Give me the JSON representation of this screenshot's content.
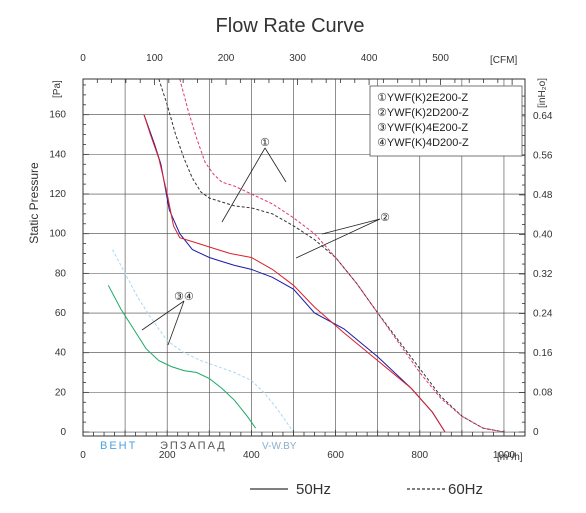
{
  "chart_data": {
    "type": "line",
    "title": "Flow Rate Curve",
    "ylabel": "Static Pressure",
    "x_bottom": {
      "unit": "[m³/h]",
      "ticks": [
        "0",
        "200",
        "400",
        "600",
        "800",
        "1000"
      ],
      "range": [
        0,
        1050
      ]
    },
    "x_top": {
      "unit": "[CFM]",
      "ticks": [
        "0",
        "100",
        "200",
        "300",
        "400",
        "500"
      ]
    },
    "y_left": {
      "unit": "[Pa]",
      "ticks": [
        "0",
        "20",
        "40",
        "60",
        "80",
        "100",
        "120",
        "140",
        "160"
      ],
      "range": [
        -2,
        178
      ]
    },
    "y_right": {
      "unit": "[inH₂o]",
      "ticks": [
        "0",
        "0.08",
        "0.16",
        "0.24",
        "0.32",
        "0.40",
        "0.48",
        "0.56",
        "0.64"
      ]
    },
    "grid": true,
    "legend_position": "top-right",
    "legend": [
      "①YWF(K)2E200-Z",
      "②YWF(K)2D200-Z",
      "③YWF(K)4E200-Z",
      "④YWF(K)4D200-Z"
    ],
    "callouts": [
      {
        "label": "①"
      },
      {
        "label": "②"
      },
      {
        "label": "③④"
      }
    ],
    "line_styles": [
      {
        "label": "50Hz",
        "dash": "solid"
      },
      {
        "label": "60Hz",
        "dash": "dashed"
      }
    ],
    "watermark": {
      "part1": "ВЕНТ",
      "part2": "ЭПЗАПАД",
      "part3": "V-W.BY"
    },
    "series": [
      {
        "color": "#1a1aa8",
        "style": "solid",
        "x": [
          145,
          170,
          185,
          205,
          230,
          260,
          300,
          330,
          360,
          400,
          450,
          500,
          550,
          620,
          700,
          780,
          830,
          860
        ],
        "y": [
          160,
          145,
          135,
          112,
          100,
          92,
          88,
          86,
          84,
          82,
          78,
          72,
          60,
          52,
          38,
          22,
          10,
          0
        ]
      },
      {
        "color": "#d9212b",
        "style": "solid",
        "x": [
          145,
          160,
          180,
          200,
          215,
          230,
          260,
          290,
          320,
          350,
          400,
          450,
          500,
          550,
          620,
          700,
          780,
          830,
          860
        ],
        "y": [
          160,
          150,
          138,
          120,
          104,
          98,
          96,
          94,
          92,
          90,
          88,
          82,
          74,
          63,
          50,
          36,
          22,
          10,
          0
        ]
      },
      {
        "color": "#333333",
        "style": "dashed",
        "x": [
          180,
          200,
          220,
          240,
          260,
          280,
          300,
          330,
          360,
          400,
          450,
          500,
          550,
          600,
          650,
          700,
          750,
          800,
          850,
          900,
          950,
          1000
        ],
        "y": [
          178,
          165,
          150,
          138,
          128,
          121,
          118,
          116,
          114,
          113,
          110,
          104,
          97,
          88,
          75,
          60,
          46,
          32,
          18,
          8,
          2,
          0
        ]
      },
      {
        "color": "#e0357c",
        "style": "dashed",
        "x": [
          230,
          250,
          270,
          290,
          310,
          330,
          360,
          400,
          450,
          500,
          550,
          600,
          650,
          700,
          750,
          800,
          850,
          900,
          950,
          1000
        ],
        "y": [
          178,
          162,
          148,
          136,
          130,
          126,
          124,
          120,
          115,
          108,
          100,
          88,
          75,
          60,
          45,
          30,
          17,
          8,
          2,
          0
        ]
      },
      {
        "color": "#1aaa66",
        "style": "solid",
        "x": [
          60,
          90,
          120,
          150,
          180,
          210,
          240,
          270,
          300,
          330,
          360,
          390,
          410
        ],
        "y": [
          74,
          62,
          52,
          42,
          36,
          33,
          31,
          30,
          27,
          22,
          16,
          8,
          2
        ]
      },
      {
        "color": "#a8d8f0",
        "style": "dashed",
        "x": [
          70,
          100,
          130,
          160,
          200,
          240,
          280,
          320,
          360,
          400,
          430,
          460,
          480,
          500
        ],
        "y": [
          92,
          80,
          68,
          58,
          46,
          40,
          36,
          33,
          30,
          26,
          20,
          12,
          6,
          0
        ]
      }
    ]
  }
}
